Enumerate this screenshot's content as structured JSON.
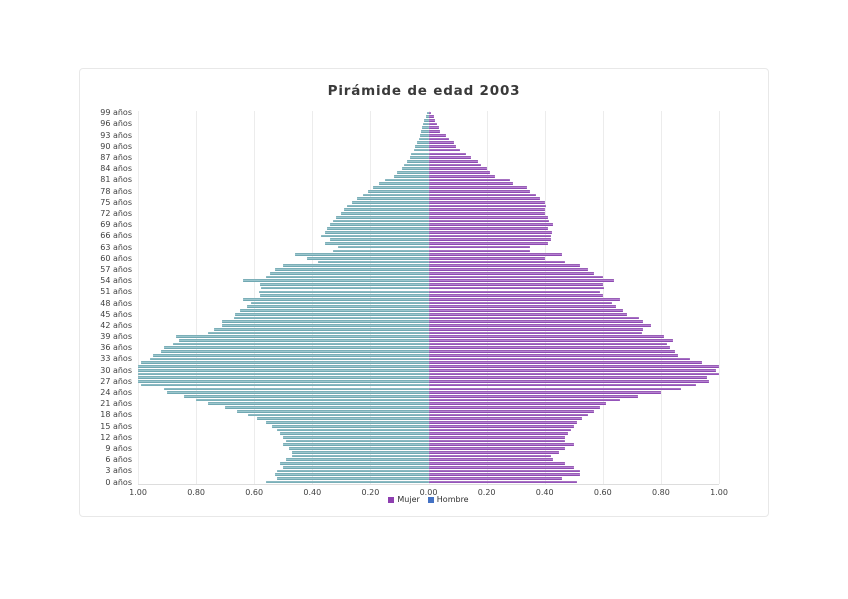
{
  "page": {
    "title": "Pirámide de edad 2003"
  },
  "legend": {
    "mujer": "Mujer",
    "hombre": "Hombre"
  },
  "colors": {
    "hombre_bar_fill": "#8abcc4",
    "hombre_bar_edge": "#5f9aa5",
    "mujer_bar_fill": "#a563c9",
    "mujer_bar_edge": "#7b3aa0",
    "legend_mujer_swatch": "#8e3fb0",
    "legend_hombre_swatch": "#4472c4",
    "grid": "#ececec",
    "text": "#3f3f3f"
  },
  "chart_data": {
    "type": "bar",
    "subtype": "population-pyramid",
    "title": "Pirámide de edad 2003",
    "xlabel": "",
    "ylabel": "",
    "grid": true,
    "legend_position": "bottom-center",
    "xlim_each_side": [
      0,
      1.0
    ],
    "x_tick_step": 0.2,
    "x_tick_labels": [
      "1.00",
      "0.80",
      "0.60",
      "0.40",
      "0.20",
      "0.00",
      "0.20",
      "0.40",
      "0.60",
      "0.80",
      "1.00"
    ],
    "y_tick_labels_top_to_bottom": [
      "99 años",
      "96 años",
      "93 años",
      "90 años",
      "87 años",
      "84 años",
      "81 años",
      "78 años",
      "75 años",
      "72 años",
      "69 años",
      "66 años",
      "63 años",
      "60 años",
      "57 años",
      "54 años",
      "51 años",
      "48 años",
      "45 años",
      "42 años",
      "39 años",
      "36 años",
      "33 años",
      "30 años",
      "27 años",
      "24 años",
      "21 años",
      "18 años",
      "15 años",
      "12 años",
      "9 años",
      "6 años",
      "3 años",
      "0 años"
    ],
    "ages_bottom_to_top": "0-99, one bar per year of age",
    "series": [
      {
        "name": "Hombre",
        "side": "left",
        "values_age0_to_age99": [
          0.56,
          0.52,
          0.53,
          0.52,
          0.5,
          0.51,
          0.49,
          0.47,
          0.47,
          0.48,
          0.5,
          0.49,
          0.5,
          0.51,
          0.52,
          0.54,
          0.56,
          0.59,
          0.62,
          0.66,
          0.7,
          0.76,
          0.8,
          0.84,
          0.9,
          0.91,
          0.99,
          1.0,
          1.0,
          1.0,
          1.0,
          1.0,
          0.99,
          0.96,
          0.95,
          0.92,
          0.91,
          0.88,
          0.86,
          0.87,
          0.76,
          0.74,
          0.71,
          0.71,
          0.67,
          0.665,
          0.65,
          0.625,
          0.61,
          0.64,
          0.58,
          0.585,
          0.575,
          0.58,
          0.64,
          0.56,
          0.545,
          0.53,
          0.5,
          0.38,
          0.42,
          0.46,
          0.33,
          0.31,
          0.355,
          0.34,
          0.37,
          0.355,
          0.35,
          0.34,
          0.33,
          0.32,
          0.3,
          0.29,
          0.28,
          0.265,
          0.245,
          0.225,
          0.21,
          0.19,
          0.17,
          0.15,
          0.12,
          0.11,
          0.09,
          0.085,
          0.073,
          0.064,
          0.06,
          0.05,
          0.047,
          0.039,
          0.033,
          0.028,
          0.025,
          0.022,
          0.018,
          0.016,
          0.01,
          0.006
        ]
      },
      {
        "name": "Mujer",
        "side": "right",
        "values_age0_to_age99": [
          0.51,
          0.46,
          0.52,
          0.52,
          0.5,
          0.47,
          0.43,
          0.42,
          0.45,
          0.47,
          0.5,
          0.47,
          0.47,
          0.48,
          0.49,
          0.5,
          0.51,
          0.53,
          0.55,
          0.57,
          0.59,
          0.61,
          0.66,
          0.72,
          0.8,
          0.87,
          0.92,
          0.965,
          0.96,
          1.0,
          0.99,
          1.0,
          0.94,
          0.9,
          0.86,
          0.85,
          0.83,
          0.82,
          0.84,
          0.81,
          0.735,
          0.74,
          0.765,
          0.74,
          0.725,
          0.685,
          0.67,
          0.645,
          0.63,
          0.66,
          0.6,
          0.59,
          0.605,
          0.6,
          0.64,
          0.6,
          0.57,
          0.55,
          0.52,
          0.47,
          0.4,
          0.46,
          0.35,
          0.35,
          0.41,
          0.42,
          0.42,
          0.425,
          0.41,
          0.43,
          0.415,
          0.41,
          0.4,
          0.4,
          0.405,
          0.4,
          0.385,
          0.37,
          0.35,
          0.34,
          0.29,
          0.28,
          0.23,
          0.21,
          0.2,
          0.18,
          0.17,
          0.145,
          0.13,
          0.11,
          0.093,
          0.087,
          0.07,
          0.06,
          0.04,
          0.036,
          0.03,
          0.024,
          0.018,
          0.01
        ]
      }
    ]
  }
}
